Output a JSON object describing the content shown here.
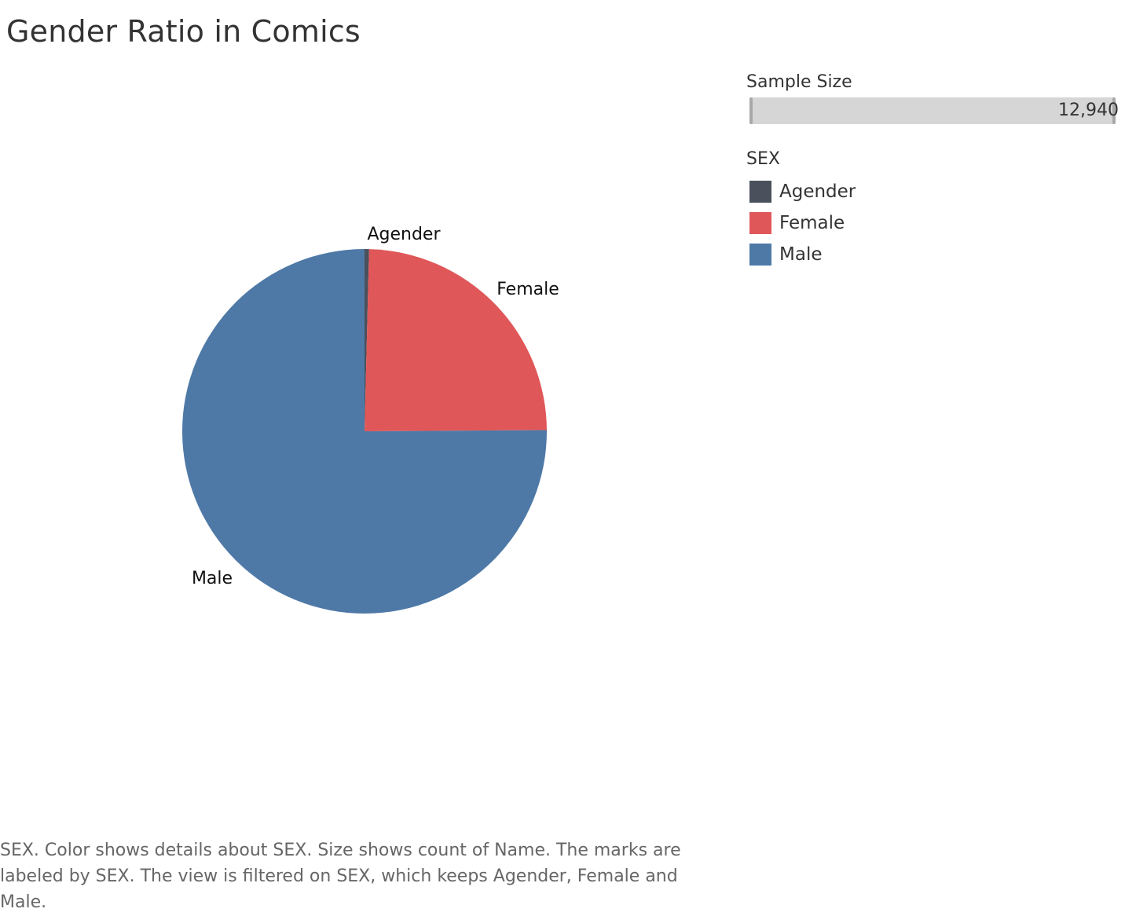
{
  "chart_data": {
    "type": "pie",
    "title": "Gender Ratio in Comics",
    "field": "SEX",
    "slices": [
      {
        "label": "Agender",
        "value": 0.4,
        "color": "#4a505c"
      },
      {
        "label": "Female",
        "value": 24.5,
        "color": "#e05759"
      },
      {
        "label": "Male",
        "value": 75.1,
        "color": "#4e79a7"
      }
    ],
    "legend_placement": "right"
  },
  "legend": {
    "sample_size": {
      "title": "Sample Size",
      "value": "12,940"
    },
    "color": {
      "title": "SEX",
      "items": [
        {
          "label": "Agender",
          "color": "#4a505c"
        },
        {
          "label": "Female",
          "color": "#e05759"
        },
        {
          "label": "Male",
          "color": "#4e79a7"
        }
      ]
    }
  },
  "caption": "SEX.  Color shows details about SEX.  Size shows count of Name.  The marks are labeled by SEX. The view is filtered on SEX, which keeps Agender, Female and Male."
}
